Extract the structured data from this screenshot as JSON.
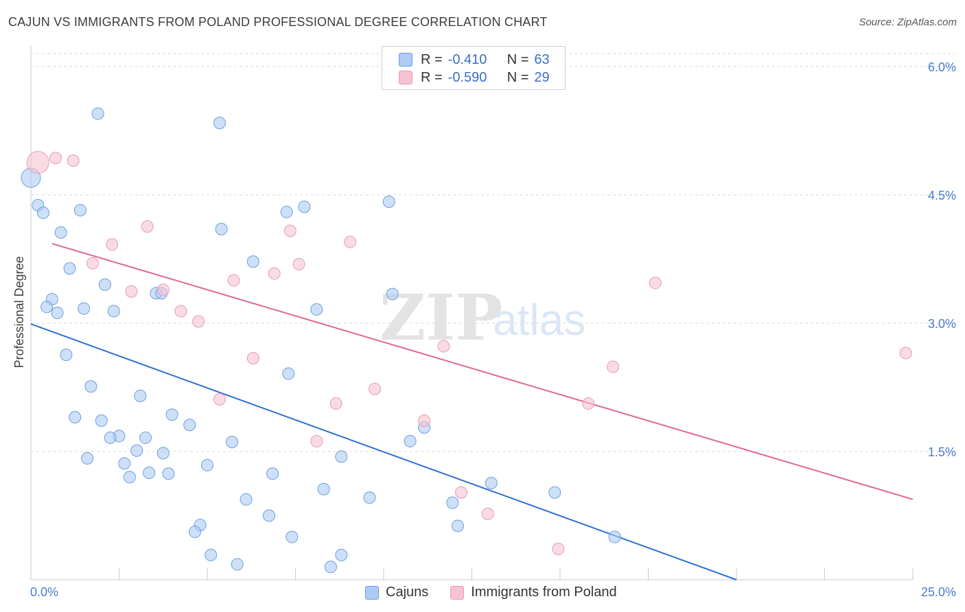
{
  "title": "CAJUN VS IMMIGRANTS FROM POLAND PROFESSIONAL DEGREE CORRELATION CHART",
  "source": "Source: ZipAtlas.com",
  "watermark": {
    "zip": "ZIP",
    "atlas": "atlas"
  },
  "legend": {
    "r_label": "R =",
    "n_label": "N =",
    "entries": [
      {
        "r": "-0.410",
        "n": "63"
      },
      {
        "r": "-0.590",
        "n": "29"
      }
    ]
  },
  "colors": {
    "cajun_fill": "#aecbf3",
    "cajun_stroke": "#6b9de0",
    "cajun_line": "#2e6fd1",
    "poland_fill": "#f7c3d2",
    "poland_stroke": "#e89ab3",
    "poland_line": "#e06690",
    "tick_text": "#4a7cc9",
    "grid": "#d9d9d9"
  },
  "chart_data": {
    "type": "scatter",
    "title": "CAJUN VS IMMIGRANTS FROM POLAND PROFESSIONAL DEGREE CORRELATION CHART",
    "xlabel": "",
    "ylabel": "Professional Degree",
    "xlim": [
      0,
      25
    ],
    "ylim": [
      0,
      6.2
    ],
    "x_tick_labels": [
      "0.0%",
      "25.0%"
    ],
    "y_ticks": [
      1.5,
      3.0,
      4.5,
      6.0
    ],
    "y_tick_labels": [
      "1.5%",
      "3.0%",
      "4.5%",
      "6.0%"
    ],
    "grid": true,
    "legend_position": "top-center",
    "series": [
      {
        "name": "Cajuns",
        "trend": {
          "x": [
            0,
            20.0
          ],
          "y": [
            2.99,
            0.0
          ]
        },
        "points": [
          {
            "x": 0.0,
            "y": 4.7,
            "s": 14
          },
          {
            "x": 0.2,
            "y": 4.38
          },
          {
            "x": 0.35,
            "y": 4.29
          },
          {
            "x": 0.85,
            "y": 4.06
          },
          {
            "x": 1.9,
            "y": 5.45
          },
          {
            "x": 1.4,
            "y": 4.32
          },
          {
            "x": 5.35,
            "y": 5.34
          },
          {
            "x": 5.4,
            "y": 4.1
          },
          {
            "x": 7.25,
            "y": 4.3
          },
          {
            "x": 7.75,
            "y": 4.36
          },
          {
            "x": 10.15,
            "y": 4.42
          },
          {
            "x": 1.1,
            "y": 3.64
          },
          {
            "x": 2.1,
            "y": 3.45
          },
          {
            "x": 6.3,
            "y": 3.72
          },
          {
            "x": 3.55,
            "y": 3.35
          },
          {
            "x": 3.7,
            "y": 3.35
          },
          {
            "x": 10.25,
            "y": 3.34
          },
          {
            "x": 0.6,
            "y": 3.28
          },
          {
            "x": 0.45,
            "y": 3.19
          },
          {
            "x": 0.75,
            "y": 3.12
          },
          {
            "x": 1.5,
            "y": 3.17
          },
          {
            "x": 2.35,
            "y": 3.14
          },
          {
            "x": 8.1,
            "y": 3.16
          },
          {
            "x": 1.0,
            "y": 2.63
          },
          {
            "x": 1.7,
            "y": 2.26
          },
          {
            "x": 7.3,
            "y": 2.41
          },
          {
            "x": 3.1,
            "y": 2.15
          },
          {
            "x": 1.25,
            "y": 1.9
          },
          {
            "x": 2.0,
            "y": 1.86
          },
          {
            "x": 4.0,
            "y": 1.93
          },
          {
            "x": 4.5,
            "y": 1.81
          },
          {
            "x": 2.5,
            "y": 1.68
          },
          {
            "x": 3.25,
            "y": 1.66
          },
          {
            "x": 2.25,
            "y": 1.66
          },
          {
            "x": 5.7,
            "y": 1.61
          },
          {
            "x": 10.75,
            "y": 1.62
          },
          {
            "x": 11.15,
            "y": 1.78
          },
          {
            "x": 3.0,
            "y": 1.51
          },
          {
            "x": 3.75,
            "y": 1.48
          },
          {
            "x": 1.6,
            "y": 1.42
          },
          {
            "x": 2.65,
            "y": 1.36
          },
          {
            "x": 5.0,
            "y": 1.34
          },
          {
            "x": 8.8,
            "y": 1.44
          },
          {
            "x": 2.8,
            "y": 1.2
          },
          {
            "x": 3.35,
            "y": 1.25
          },
          {
            "x": 3.9,
            "y": 1.24
          },
          {
            "x": 6.85,
            "y": 1.24
          },
          {
            "x": 13.05,
            "y": 1.13
          },
          {
            "x": 14.85,
            "y": 1.02
          },
          {
            "x": 8.3,
            "y": 1.06
          },
          {
            "x": 9.6,
            "y": 0.96
          },
          {
            "x": 6.1,
            "y": 0.94
          },
          {
            "x": 11.95,
            "y": 0.9
          },
          {
            "x": 6.75,
            "y": 0.75
          },
          {
            "x": 4.8,
            "y": 0.64
          },
          {
            "x": 4.65,
            "y": 0.56
          },
          {
            "x": 12.1,
            "y": 0.63
          },
          {
            "x": 7.4,
            "y": 0.5
          },
          {
            "x": 16.55,
            "y": 0.5
          },
          {
            "x": 5.1,
            "y": 0.29
          },
          {
            "x": 8.8,
            "y": 0.29
          },
          {
            "x": 5.85,
            "y": 0.18
          },
          {
            "x": 8.5,
            "y": 0.15
          }
        ]
      },
      {
        "name": "Immigrants from Poland",
        "trend": {
          "x": [
            0.6,
            25.0
          ],
          "y": [
            3.93,
            0.94
          ]
        },
        "points": [
          {
            "x": 0.2,
            "y": 4.88,
            "s": 16
          },
          {
            "x": 0.7,
            "y": 4.93
          },
          {
            "x": 1.2,
            "y": 4.9
          },
          {
            "x": 3.3,
            "y": 4.13
          },
          {
            "x": 7.35,
            "y": 4.08
          },
          {
            "x": 2.3,
            "y": 3.92
          },
          {
            "x": 9.05,
            "y": 3.95
          },
          {
            "x": 1.75,
            "y": 3.7
          },
          {
            "x": 7.6,
            "y": 3.69
          },
          {
            "x": 6.9,
            "y": 3.58
          },
          {
            "x": 5.75,
            "y": 3.5
          },
          {
            "x": 17.7,
            "y": 3.47
          },
          {
            "x": 2.85,
            "y": 3.37
          },
          {
            "x": 3.75,
            "y": 3.39
          },
          {
            "x": 4.25,
            "y": 3.14
          },
          {
            "x": 4.75,
            "y": 3.02
          },
          {
            "x": 11.7,
            "y": 2.73
          },
          {
            "x": 6.3,
            "y": 2.59
          },
          {
            "x": 16.5,
            "y": 2.49
          },
          {
            "x": 24.8,
            "y": 2.65
          },
          {
            "x": 9.75,
            "y": 2.23
          },
          {
            "x": 5.35,
            "y": 2.11
          },
          {
            "x": 8.65,
            "y": 2.06
          },
          {
            "x": 15.8,
            "y": 2.06
          },
          {
            "x": 11.15,
            "y": 1.86
          },
          {
            "x": 8.1,
            "y": 1.62
          },
          {
            "x": 12.2,
            "y": 1.02
          },
          {
            "x": 12.95,
            "y": 0.77
          },
          {
            "x": 14.95,
            "y": 0.36
          }
        ]
      }
    ]
  }
}
